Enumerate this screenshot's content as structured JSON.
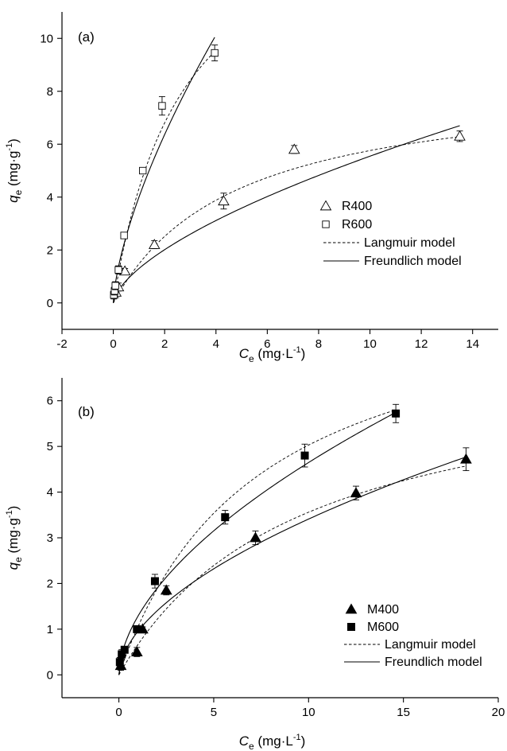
{
  "chart_data": [
    {
      "type": "scatter",
      "panel_label": "(a)",
      "xlabel": {
        "main": "C",
        "sub": "e",
        "unit": " (mg·L",
        "sup": "-1",
        "close": ")"
      },
      "ylabel": {
        "main": "q",
        "sub": "e",
        "unit": " (mg·g",
        "sup": "-1",
        "close": ")"
      },
      "xlim": [
        -2,
        15
      ],
      "ylim": [
        -1,
        11
      ],
      "xticks": [
        -2,
        0,
        2,
        4,
        6,
        8,
        10,
        12,
        14
      ],
      "yticks": [
        0,
        2,
        4,
        6,
        8,
        10
      ],
      "legend_position": "right",
      "series": [
        {
          "name": "R400",
          "marker": "triangle-open",
          "points": [
            [
              0.1,
              0.4,
              0.2
            ],
            [
              0.2,
              0.6,
              0.15
            ],
            [
              0.45,
              1.2,
              0.1
            ],
            [
              1.6,
              2.2,
              0.15
            ],
            [
              4.3,
              3.85,
              0.3
            ],
            [
              7.05,
              5.8,
              0.15
            ],
            [
              13.5,
              6.3,
              0.2
            ]
          ]
        },
        {
          "name": "R600",
          "marker": "square-open",
          "points": [
            [
              0.02,
              0.3,
              0.15
            ],
            [
              0.05,
              0.45,
              0.15
            ],
            [
              0.08,
              0.65,
              0.15
            ],
            [
              0.2,
              1.25,
              0.15
            ],
            [
              0.42,
              2.55,
              0.1
            ],
            [
              1.15,
              5.0,
              0.1
            ],
            [
              1.9,
              7.45,
              0.35
            ],
            [
              3.95,
              9.45,
              0.3
            ]
          ]
        }
      ],
      "fits": [
        {
          "name": "Langmuir model",
          "style": "dashed",
          "curves": [
            {
              "model": "langmuir",
              "qmax": 8.5,
              "K": 0.21,
              "xrange": [
                0,
                13.5
              ]
            },
            {
              "model": "langmuir",
              "qmax": 16.0,
              "K": 0.37,
              "xrange": [
                0,
                3.95
              ]
            }
          ]
        },
        {
          "name": "Freundlich model",
          "style": "solid",
          "curves": [
            {
              "model": "freundlich",
              "Kf": 1.3,
              "n": 0.63,
              "xrange": [
                0,
                13.5
              ]
            },
            {
              "model": "freundlich",
              "Kf": 4.0,
              "n": 0.67,
              "xrange": [
                0,
                3.95
              ]
            }
          ]
        }
      ]
    },
    {
      "type": "scatter",
      "panel_label": "(b)",
      "xlabel": {
        "main": "C",
        "sub": "e",
        "unit": " (mg·L",
        "sup": "-1",
        "close": ")"
      },
      "ylabel": {
        "main": "q",
        "sub": "e",
        "unit": " (mg·g",
        "sup": "-1",
        "close": ")"
      },
      "xlim": [
        -3,
        20
      ],
      "ylim": [
        -0.5,
        6.5
      ],
      "xticks": [
        0,
        5,
        10,
        15,
        20
      ],
      "yticks": [
        0,
        1,
        2,
        3,
        4,
        5,
        6
      ],
      "legend_position": "right",
      "series": [
        {
          "name": "M400",
          "marker": "triangle-filled",
          "points": [
            [
              0.1,
              0.2,
              0.1
            ],
            [
              0.95,
              0.5,
              0.1
            ],
            [
              1.25,
              1.0,
              0.05
            ],
            [
              2.5,
              1.85,
              0.1
            ],
            [
              7.2,
              3.0,
              0.15
            ],
            [
              12.5,
              3.98,
              0.15
            ],
            [
              18.3,
              4.72,
              0.25
            ]
          ]
        },
        {
          "name": "M600",
          "marker": "square-filled",
          "points": [
            [
              0.05,
              0.28,
              0.1
            ],
            [
              0.15,
              0.45,
              0.1
            ],
            [
              0.3,
              0.55,
              0.05
            ],
            [
              0.95,
              1.0,
              0.05
            ],
            [
              1.9,
              2.05,
              0.15
            ],
            [
              5.6,
              3.45,
              0.15
            ],
            [
              9.8,
              4.8,
              0.25
            ],
            [
              14.6,
              5.72,
              0.2
            ]
          ]
        }
      ],
      "fits": [
        {
          "name": "Langmuir model",
          "style": "dashed",
          "curves": [
            {
              "model": "langmuir",
              "qmax": 6.95,
              "K": 0.105,
              "xrange": [
                0,
                18.3
              ]
            },
            {
              "model": "langmuir",
              "qmax": 8.7,
              "K": 0.137,
              "xrange": [
                0,
                14.6
              ]
            }
          ]
        },
        {
          "name": "Freundlich model",
          "style": "solid",
          "curves": [
            {
              "model": "freundlich",
              "Kf": 0.95,
              "n": 0.555,
              "xrange": [
                0,
                18.3
              ]
            },
            {
              "model": "freundlich",
              "Kf": 1.28,
              "n": 0.56,
              "xrange": [
                0,
                14.6
              ]
            }
          ]
        }
      ]
    }
  ]
}
